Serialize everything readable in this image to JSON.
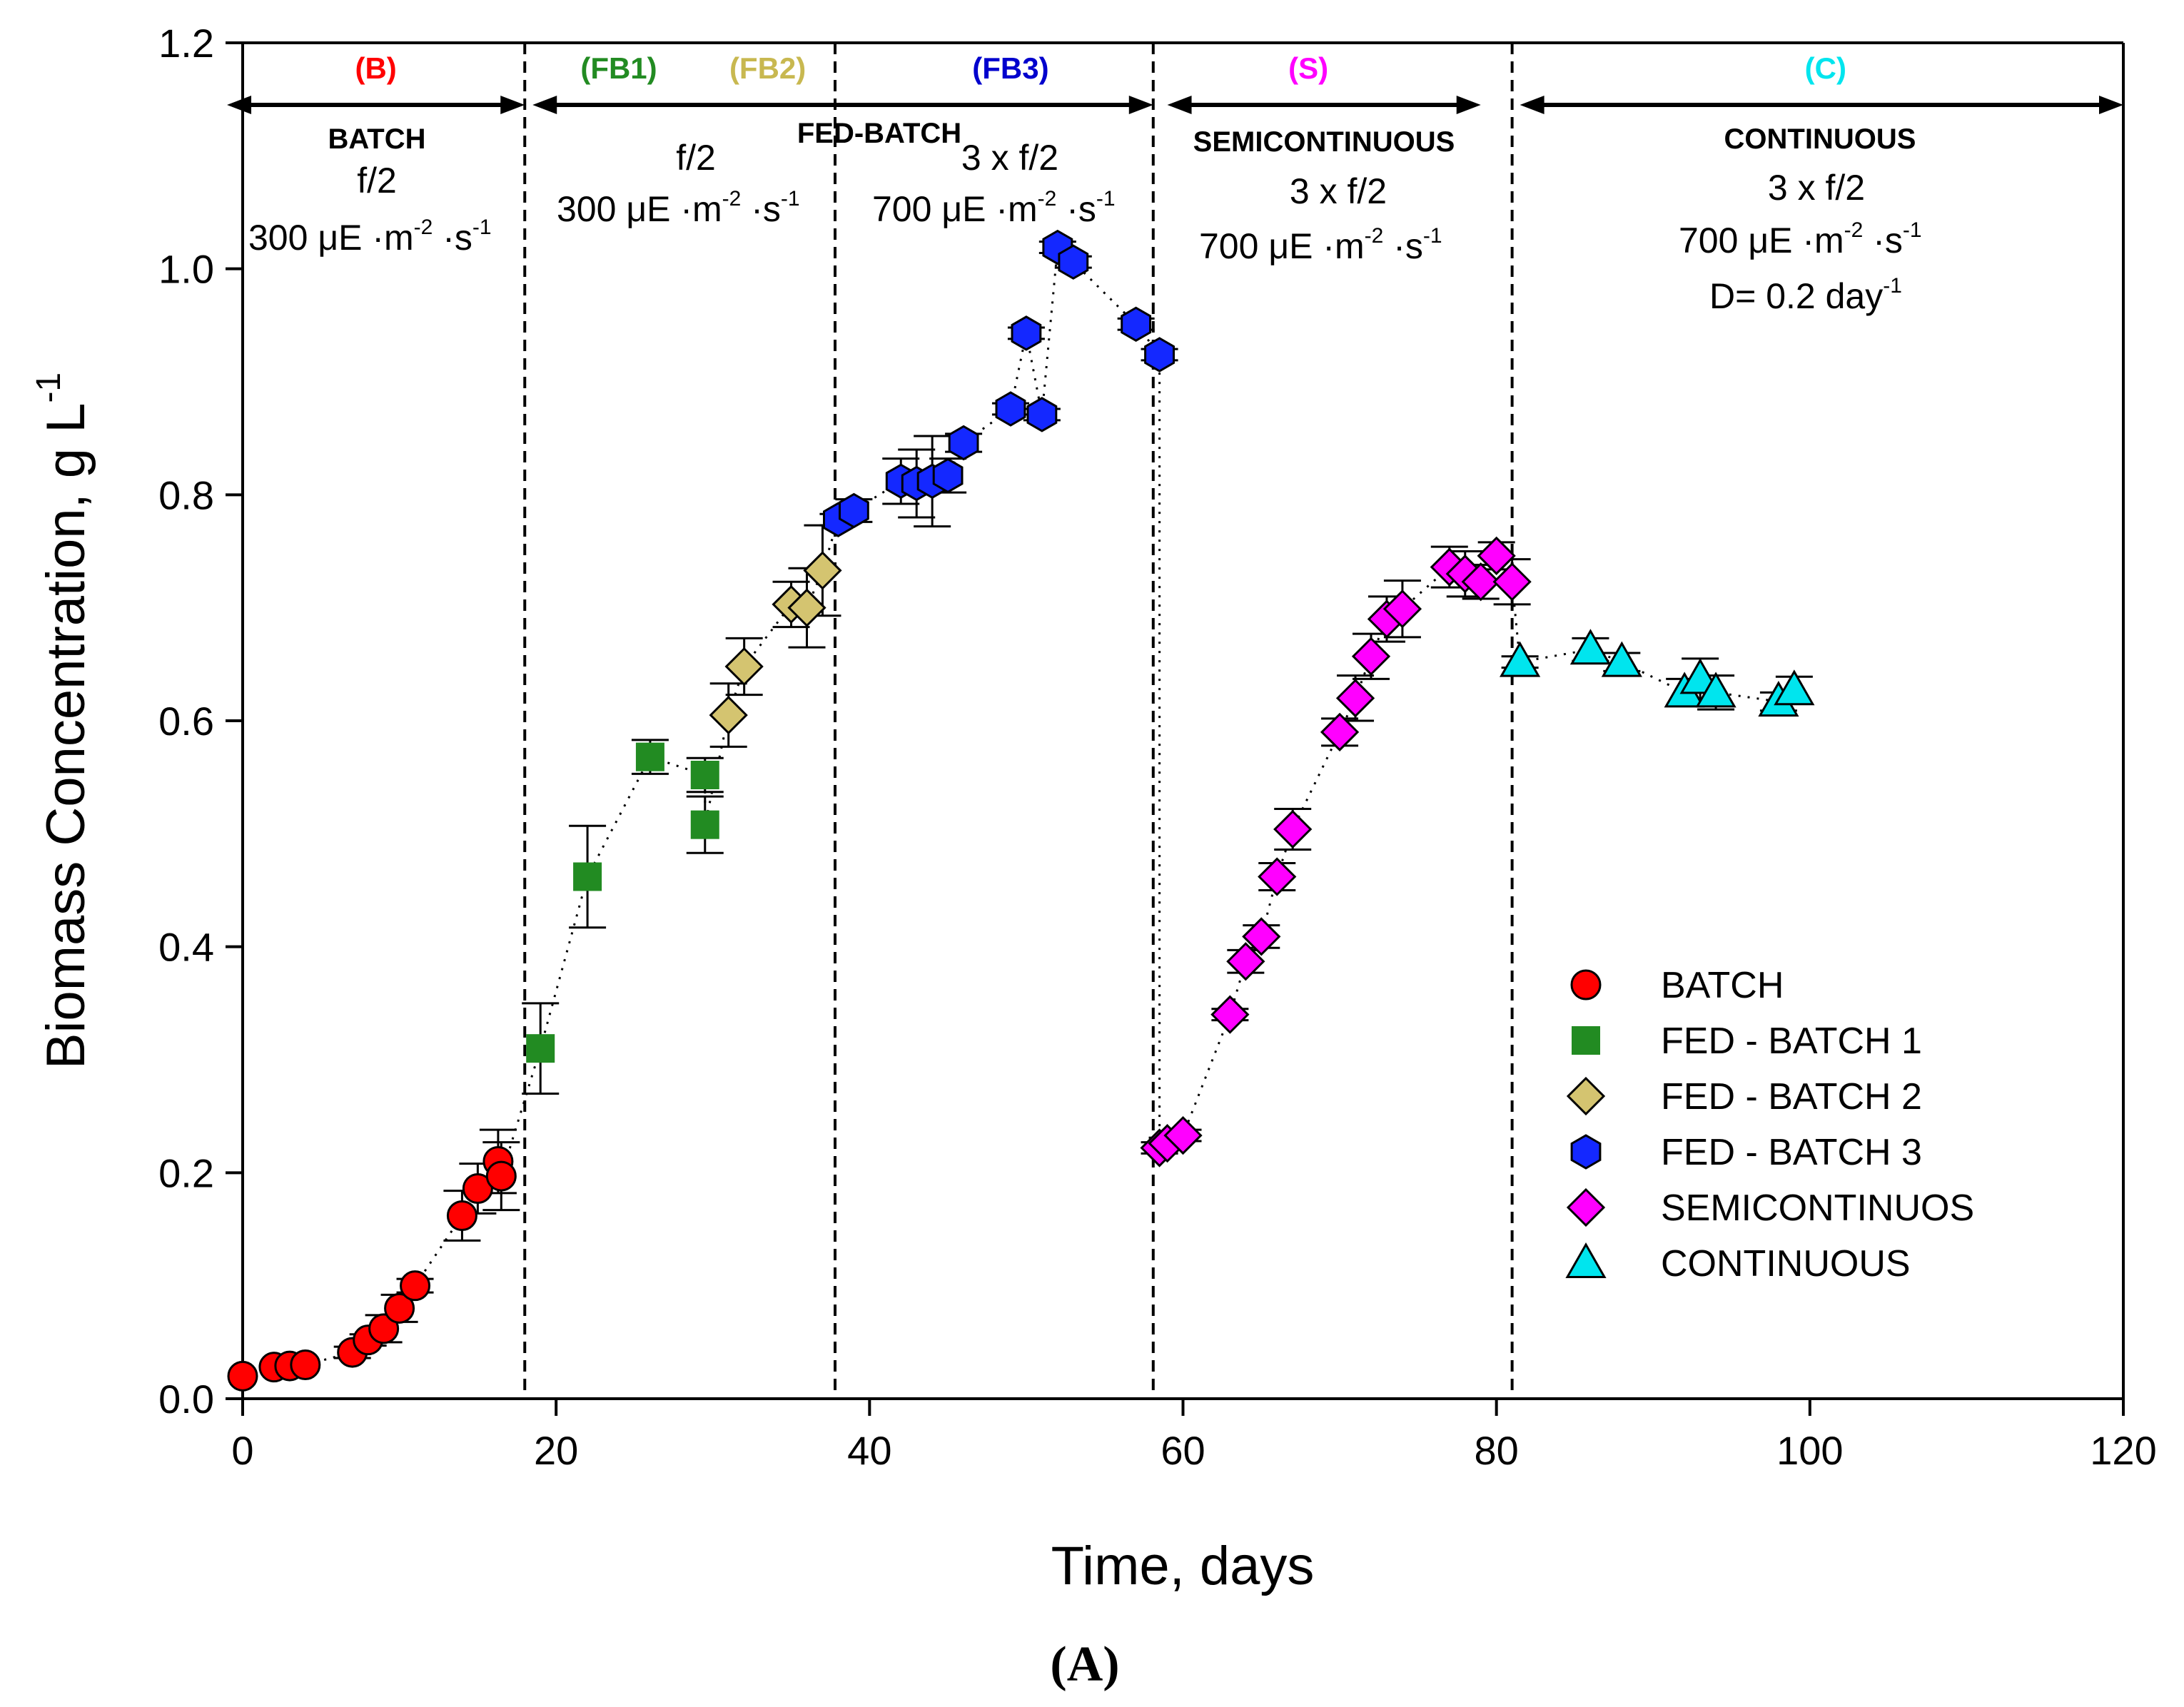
{
  "chart_data": {
    "type": "scatter",
    "caption": "(A)",
    "xlabel": "Time, days",
    "ylabel": "Biomass Concentration, g L",
    "ylabel_sup": "-1",
    "xlim": [
      0,
      120
    ],
    "ylim": [
      0.0,
      1.2
    ],
    "xticks": [
      "0",
      "20",
      "40",
      "60",
      "80",
      "100",
      "120"
    ],
    "yticks": [
      "0.0",
      "0.2",
      "0.4",
      "0.6",
      "0.8",
      "1.0",
      "1.2"
    ],
    "phase_boundaries": [
      18,
      37.8,
      58.1,
      81
    ],
    "phases": [
      {
        "code": "(B)",
        "code_color": "#ff0000",
        "x_center": 8.5,
        "x_from": -1,
        "x_to": 18
      },
      {
        "code": "(FB1)",
        "code_color": "#228b22",
        "x_center": 24,
        "x_from": 18.5,
        "x_to": 58.1
      },
      {
        "code": "(FB2)",
        "code_color": "#c8b850",
        "x_center": 33.5,
        "x_from": null,
        "x_to": null
      },
      {
        "code": "(FB3)",
        "code_color": "#0000cd",
        "x_center": 49,
        "x_from": null,
        "x_to": null
      },
      {
        "code": "(S)",
        "code_color": "#ff00ff",
        "x_center": 68,
        "x_from": 59,
        "x_to": 79
      },
      {
        "code": "(C)",
        "code_color": "#00e5ee",
        "x_center": 101,
        "x_from": 81.5,
        "x_to": 120
      }
    ],
    "region_labels": {
      "batch_title": "BATCH",
      "batch_medium": "f/2",
      "batch_light": "300 μE ·m",
      "batch_light_sup1": "-2",
      "batch_light_mid": " ·s",
      "batch_light_sup2": "-1",
      "fb12_medium": "f/2",
      "fb12_light": "300 μE ·m",
      "fb12_light_sup1": "-2",
      "fb12_light_mid": " ·s",
      "fb12_light_sup2": "-1",
      "fedbatch_title": "FED-BATCH",
      "fb3_medium": "3 x f/2",
      "fb3_light": "700 μE ·m",
      "fb3_light_sup1": "-2",
      "fb3_light_mid": " ·s",
      "fb3_light_sup2": "-1",
      "semi_title": "SEMICONTINUOUS",
      "semi_medium": "3 x f/2",
      "semi_light": "700 μE ·m",
      "semi_light_sup1": "-2",
      "semi_light_mid": " ·s",
      "semi_light_sup2": "-1",
      "cont_title": "CONTINUOUS",
      "cont_medium": "3 x f/2",
      "cont_light": "700 μE ·m",
      "cont_light_sup1": "-2",
      "cont_light_mid": " ·s",
      "cont_light_sup2": "-1",
      "cont_dilution": "D= 0.2 day",
      "cont_dilution_sup": "-1"
    },
    "legend_position": "bottom-right",
    "series": [
      {
        "name": "BATCH",
        "marker": "circle",
        "color": "#ff0000",
        "points": [
          [
            0,
            0.02,
            0
          ],
          [
            2,
            0.028,
            0
          ],
          [
            3,
            0.029,
            0
          ],
          [
            4,
            0.03,
            0
          ],
          [
            7,
            0.041,
            0.005
          ],
          [
            8,
            0.052,
            0.005
          ],
          [
            9,
            0.062,
            0.012
          ],
          [
            10,
            0.08,
            0.012
          ],
          [
            11,
            0.1,
            0.006
          ],
          [
            14,
            0.162,
            0.022
          ],
          [
            15,
            0.186,
            0.022
          ],
          [
            16.3,
            0.21,
            0.028
          ],
          [
            16.5,
            0.197,
            0.03
          ]
        ]
      },
      {
        "name": "FED - BATCH 1",
        "marker": "square",
        "color": "#228b22",
        "points": [
          [
            19,
            0.31,
            0.04
          ],
          [
            22,
            0.462,
            0.045
          ],
          [
            26,
            0.568,
            0.015
          ],
          [
            29.5,
            0.552,
            0.015
          ],
          [
            29.5,
            0.508,
            0.025
          ]
        ]
      },
      {
        "name": "FED - BATCH 2",
        "marker": "diamond",
        "color": "#d4c470",
        "points": [
          [
            31,
            0.605,
            0.028
          ],
          [
            32,
            0.648,
            0.025
          ],
          [
            35,
            0.703,
            0.02
          ],
          [
            36,
            0.7,
            0.035
          ],
          [
            37,
            0.733,
            0.04
          ]
        ]
      },
      {
        "name": "FED - BATCH 3",
        "marker": "hexagon",
        "color": "#1428ff",
        "points": [
          [
            38,
            0.778,
            0.005
          ],
          [
            39,
            0.786,
            0.01
          ],
          [
            42,
            0.812,
            0.02
          ],
          [
            43,
            0.81,
            0.03
          ],
          [
            44,
            0.812,
            0.04
          ],
          [
            45,
            0.817,
            0.015
          ],
          [
            46,
            0.846,
            0.008
          ],
          [
            49,
            0.876,
            0.005
          ],
          [
            50,
            0.943,
            0.005
          ],
          [
            51,
            0.871,
            0.005
          ],
          [
            52,
            1.019,
            0.005
          ],
          [
            53,
            1.006,
            0.005
          ],
          [
            57,
            0.951,
            0.005
          ],
          [
            58.5,
            0.924,
            0.005
          ]
        ]
      },
      {
        "name": "SEMICONTINUOS",
        "marker": "diamond",
        "color": "#ff00ff",
        "points": [
          [
            58.5,
            0.222,
            0.005
          ],
          [
            59,
            0.226,
            0.005
          ],
          [
            60,
            0.233,
            0.005
          ],
          [
            63,
            0.34,
            0.005
          ],
          [
            64,
            0.387,
            0.01
          ],
          [
            65,
            0.409,
            0.01
          ],
          [
            66,
            0.462,
            0.012
          ],
          [
            67,
            0.504,
            0.018
          ],
          [
            70,
            0.59,
            0.012
          ],
          [
            71,
            0.62,
            0.02
          ],
          [
            72,
            0.657,
            0.02
          ],
          [
            73,
            0.69,
            0.02
          ],
          [
            74,
            0.699,
            0.025
          ],
          [
            77,
            0.736,
            0.018
          ],
          [
            78,
            0.73,
            0.02
          ],
          [
            79,
            0.723,
            0.015
          ],
          [
            80,
            0.746,
            0.012
          ],
          [
            81,
            0.723,
            0.02
          ]
        ]
      },
      {
        "name": "CONTINUOUS",
        "marker": "triangle",
        "color": "#00e5ee",
        "points": [
          [
            81.5,
            0.652,
            0.005
          ],
          [
            86,
            0.663,
            0.01
          ],
          [
            88,
            0.652,
            0.008
          ],
          [
            92,
            0.625,
            0.012
          ],
          [
            93,
            0.637,
            0.018
          ],
          [
            94,
            0.625,
            0.015
          ],
          [
            98,
            0.617,
            0.008
          ],
          [
            99,
            0.627,
            0.012
          ]
        ]
      }
    ]
  }
}
